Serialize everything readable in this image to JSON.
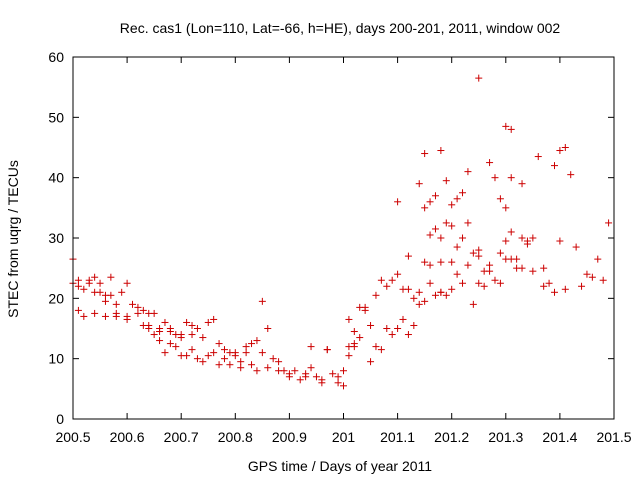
{
  "chart_data": {
    "type": "scatter",
    "title": "Rec. cas1 (Lon=110, Lat=-66, h=HE), days 200-201, 2011, window 002",
    "xlabel": "GPS time / Days of year 2011",
    "ylabel": "STEC from uqrg / TECUs",
    "xlim": [
      200.5,
      201.5
    ],
    "ylim": [
      0,
      60
    ],
    "xticks": [
      200.5,
      200.6,
      200.7,
      200.8,
      200.9,
      201,
      201.1,
      201.2,
      201.3,
      201.4,
      201.5
    ],
    "xtick_labels": [
      "200.5",
      "200.6",
      "200.7",
      "200.8",
      "200.9",
      "201",
      "201.1",
      "201.2",
      "201.3",
      "201.4",
      "201.5"
    ],
    "yticks": [
      0,
      10,
      20,
      30,
      40,
      50,
      60
    ],
    "ytick_labels": [
      "0",
      "10",
      "20",
      "30",
      "40",
      "50",
      "60"
    ],
    "marker": "+",
    "color": "#cc0000",
    "series": [
      {
        "name": "STEC",
        "x": [
          200.5,
          200.5,
          200.51,
          200.51,
          200.52,
          200.53,
          200.53,
          200.54,
          200.54,
          200.55,
          200.55,
          200.56,
          200.56,
          200.57,
          200.57,
          200.58,
          200.58,
          200.59,
          200.6,
          200.6,
          200.51,
          200.52,
          200.54,
          200.56,
          200.58,
          200.6,
          200.61,
          200.62,
          200.63,
          200.64,
          200.64,
          200.65,
          200.66,
          200.66,
          200.67,
          200.68,
          200.68,
          200.69,
          200.7,
          200.7,
          200.62,
          200.63,
          200.64,
          200.65,
          200.66,
          200.67,
          200.68,
          200.69,
          200.7,
          200.71,
          200.72,
          200.72,
          200.73,
          200.74,
          200.75,
          200.76,
          200.77,
          200.78,
          200.79,
          200.8,
          200.71,
          200.72,
          200.73,
          200.74,
          200.75,
          200.76,
          200.77,
          200.78,
          200.79,
          200.8,
          200.81,
          200.82,
          200.83,
          200.84,
          200.85,
          200.86,
          200.87,
          200.88,
          200.89,
          200.9,
          200.81,
          200.82,
          200.83,
          200.84,
          200.85,
          200.86,
          200.88,
          200.9,
          200.91,
          200.92,
          200.93,
          200.94,
          200.95,
          200.96,
          200.97,
          200.98,
          200.99,
          201,
          201.01,
          201.02,
          200.93,
          200.94,
          200.96,
          200.97,
          200.99,
          201.0,
          201.01,
          201.02,
          201.03,
          201.04,
          201.05,
          201.06,
          201.07,
          201.08,
          201.09,
          201.1,
          201.11,
          201.12,
          201.13,
          201.14,
          201.01,
          201.02,
          201.03,
          201.04,
          201.05,
          201.06,
          201.07,
          201.08,
          201.09,
          201.1,
          201.11,
          201.12,
          201.13,
          201.14,
          201.15,
          201.16,
          201.17,
          201.18,
          201.19,
          201.2,
          201.1,
          201.12,
          201.14,
          201.15,
          201.16,
          201.17,
          201.18,
          201.19,
          201.2,
          201.21,
          201.22,
          201.23,
          201.24,
          201.25,
          201.26,
          201.27,
          201.28,
          201.29,
          201.3,
          201.31,
          201.15,
          201.16,
          201.17,
          201.18,
          201.19,
          201.2,
          201.21,
          201.22,
          201.23,
          201.24,
          201.25,
          201.26,
          201.27,
          201.28,
          201.29,
          201.3,
          201.31,
          201.32,
          201.33,
          201.34,
          201.3,
          201.31,
          201.32,
          201.33,
          201.34,
          201.35,
          201.36,
          201.37,
          201.38,
          201.39,
          201.4,
          201.41,
          201.42,
          201.43,
          201.44,
          201.45,
          201.46,
          201.47,
          201.48,
          201.49,
          201.16,
          201.18,
          201.21,
          201.23,
          201.25,
          201.27,
          201.29,
          201.31,
          201.33,
          201.35,
          201.37,
          201.39,
          201.41,
          201.25,
          201.3,
          201.4,
          201.2,
          201.18,
          201.15,
          201.22
        ],
        "y": [
          26.5,
          22.5,
          23,
          22,
          21.5,
          23,
          22.5,
          23.5,
          21,
          22.5,
          21,
          20.5,
          19.5,
          23.5,
          20.5,
          19,
          17.5,
          21,
          22.5,
          17,
          18,
          17,
          17.5,
          17,
          17,
          16.5,
          19,
          18.5,
          18,
          15.5,
          17.5,
          17.5,
          14.5,
          15,
          16,
          14.5,
          15,
          14,
          14,
          13.5,
          17.5,
          15.5,
          15,
          14,
          13,
          11,
          12.5,
          12,
          10.5,
          16,
          15.5,
          14,
          15,
          13.5,
          16,
          16.5,
          12.5,
          11.5,
          11,
          11,
          10.5,
          11.5,
          10,
          9.5,
          10.5,
          11,
          9,
          10,
          9,
          10.5,
          9.5,
          12,
          12.5,
          13,
          11,
          15,
          10,
          9.5,
          8,
          7.5,
          8.5,
          11,
          9,
          8,
          19.5,
          8.5,
          8,
          7,
          8,
          6.5,
          7.5,
          12,
          7,
          6,
          11.5,
          7.5,
          7,
          8,
          10.5,
          12,
          7,
          8.5,
          6.5,
          11.5,
          6,
          5.5,
          12,
          12.5,
          13.5,
          18,
          15.5,
          12,
          11.5,
          15,
          14,
          15,
          16.5,
          14,
          15.5,
          19,
          16.5,
          14.5,
          18.5,
          18.5,
          9.5,
          20.5,
          23,
          22,
          23,
          24,
          21.5,
          21.5,
          20,
          21,
          19.5,
          22.5,
          20.5,
          21,
          20.5,
          21.5,
          36,
          27,
          39,
          44,
          36,
          37,
          44.5,
          39.5,
          35.5,
          36.5,
          37.5,
          41,
          19,
          56.5,
          22,
          42.5,
          40,
          36.5,
          48.5,
          48,
          35,
          30.5,
          31.5,
          30,
          32.5,
          32,
          28.5,
          30,
          32.5,
          27.5,
          28,
          24.5,
          25.5,
          23,
          22.5,
          26.5,
          26.5,
          25,
          39,
          29.5,
          35,
          40,
          26.5,
          30,
          29,
          24.5,
          43.5,
          25,
          22.5,
          42,
          44.5,
          45,
          40.5,
          28.5,
          22,
          24,
          23.5,
          26.5,
          23,
          32.5,
          25.5,
          26,
          24,
          25.5,
          27,
          24.5,
          27.5,
          31,
          25,
          30,
          22,
          21,
          21.5,
          22.5,
          29.5,
          29.5,
          26,
          21,
          26,
          22.5
        ]
      }
    ]
  }
}
